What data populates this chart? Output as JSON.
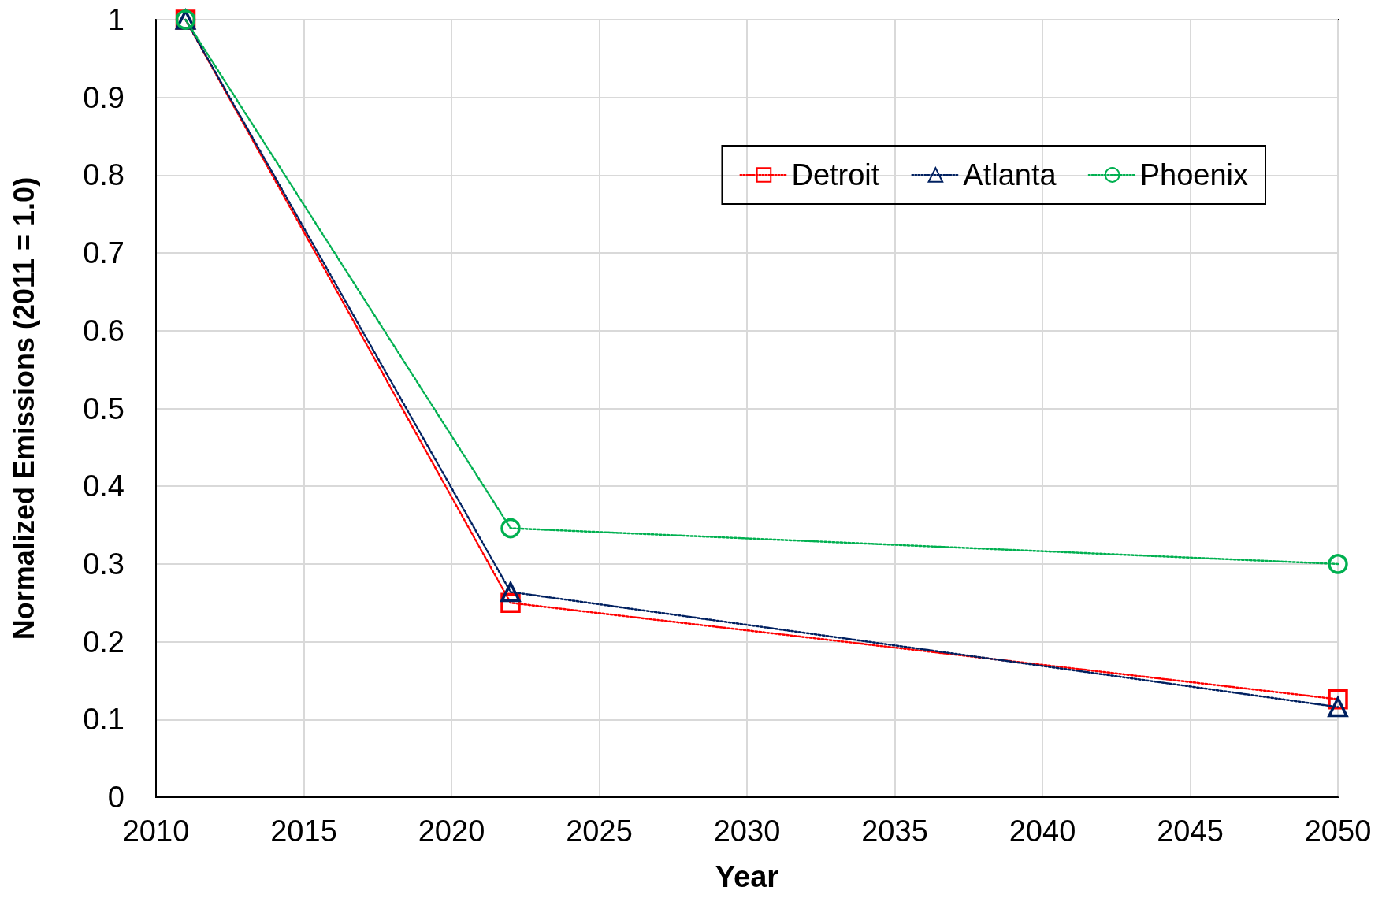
{
  "chart_data": {
    "type": "line",
    "xlabel": "Year",
    "ylabel": "Normalized Emissions (2011 = 1.0)",
    "x": [
      2011,
      2022,
      2050
    ],
    "series": [
      {
        "name": "Detroit",
        "color": "#ff0000",
        "values": [
          1,
          0.25,
          0.126
        ],
        "marker": "square"
      },
      {
        "name": "Atlanta",
        "color": "#002060",
        "values": [
          1,
          0.264,
          0.116
        ],
        "marker": "triangle"
      },
      {
        "name": "Phoenix",
        "color": "#00b050",
        "values": [
          1,
          0.346,
          0.3
        ],
        "marker": "circle"
      }
    ],
    "xlim": [
      2010,
      2050
    ],
    "xticks": [
      2010,
      2015,
      2020,
      2025,
      2030,
      2035,
      2040,
      2045,
      2050
    ],
    "ylim": [
      0,
      1
    ],
    "yticks": [
      0,
      0.1,
      0.2,
      0.3,
      0.4,
      0.5,
      0.6,
      0.7,
      0.8,
      0.9,
      1
    ],
    "grid": true,
    "legend": "top right",
    "line_style": "dotted"
  }
}
